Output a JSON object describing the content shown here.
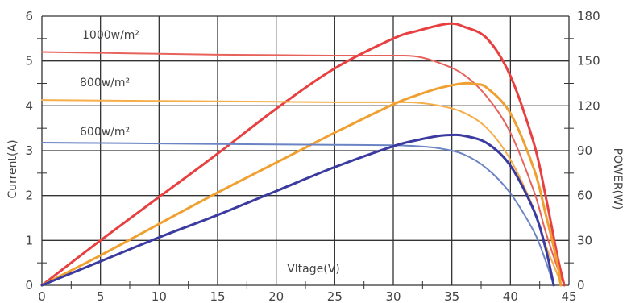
{
  "chart_data": {
    "type": "line",
    "xlabel": "Vltage(V)",
    "ylabel_left": "Current(A)",
    "ylabel_right": "POWER(W)",
    "xlim": [
      0,
      45
    ],
    "ylim_left": [
      0,
      6
    ],
    "ylim_right": [
      0,
      180
    ],
    "x_ticks": [
      "0",
      "5",
      "10",
      "15",
      "20",
      "25",
      "30",
      "35",
      "40",
      "45"
    ],
    "y_left_ticks": [
      "0",
      "1",
      "2",
      "3",
      "4",
      "5",
      "6"
    ],
    "y_right_ticks": [
      "0",
      "30",
      "60",
      "90",
      "120",
      "150",
      "180"
    ],
    "grid": true,
    "annotations": [
      {
        "text": "1000w/m²",
        "series": "iv_1000"
      },
      {
        "text": "800w/m²",
        "series": "iv_800"
      },
      {
        "text": "600w/m²",
        "series": "iv_600"
      }
    ],
    "colors": {
      "iv_1000": "#e8625c",
      "pv_1000": "#e84040",
      "iv_800": "#f5ae4a",
      "pv_800": "#f0a030",
      "iv_600": "#6b84c4",
      "pv_600": "#3a3aa0",
      "grid": "#333333"
    },
    "series": [
      {
        "id": "iv_1000",
        "axis": "left",
        "x": [
          0,
          5,
          10,
          15,
          20,
          25,
          30,
          32,
          34,
          36,
          38,
          40,
          42,
          43,
          44,
          44.6
        ],
        "y": [
          5.2,
          5.18,
          5.16,
          5.14,
          5.13,
          5.12,
          5.12,
          5.1,
          4.95,
          4.7,
          4.2,
          3.4,
          2.1,
          1.2,
          0.4,
          0
        ]
      },
      {
        "id": "pv_1000",
        "axis": "right",
        "x": [
          0,
          5,
          10,
          15,
          20,
          25,
          30,
          32,
          34,
          35,
          36,
          38,
          40,
          42,
          43,
          44,
          44.6
        ],
        "y": [
          0,
          30,
          59,
          88,
          118,
          145,
          165,
          170,
          174,
          175,
          173,
          165,
          140,
          95,
          60,
          20,
          0
        ]
      },
      {
        "id": "iv_800",
        "axis": "left",
        "x": [
          0,
          5,
          10,
          15,
          20,
          25,
          30,
          32,
          34,
          36,
          38,
          40,
          42,
          43,
          44,
          44.3
        ],
        "y": [
          4.13,
          4.12,
          4.11,
          4.1,
          4.09,
          4.08,
          4.08,
          4.07,
          4.0,
          3.85,
          3.5,
          2.8,
          1.7,
          0.9,
          0.25,
          0
        ]
      },
      {
        "id": "pv_800",
        "axis": "right",
        "x": [
          0,
          5,
          10,
          15,
          20,
          25,
          30,
          32,
          34,
          36,
          37,
          38,
          40,
          42,
          43,
          44,
          44.3
        ],
        "y": [
          0,
          20,
          41,
          62,
          82,
          102,
          121,
          127,
          132,
          135,
          134.5,
          132,
          115,
          78,
          48,
          15,
          0
        ]
      },
      {
        "id": "iv_600",
        "axis": "left",
        "x": [
          0,
          5,
          10,
          15,
          20,
          25,
          30,
          32,
          34,
          36,
          38,
          40,
          42,
          43,
          43.7
        ],
        "y": [
          3.18,
          3.17,
          3.16,
          3.15,
          3.14,
          3.13,
          3.12,
          3.1,
          3.05,
          2.92,
          2.6,
          2.05,
          1.2,
          0.55,
          0
        ]
      },
      {
        "id": "pv_600",
        "axis": "right",
        "x": [
          0,
          5,
          10,
          15,
          20,
          25,
          30,
          32,
          34,
          35,
          36,
          38,
          40,
          42,
          43,
          43.7
        ],
        "y": [
          0,
          16,
          32,
          47,
          63,
          79,
          93,
          97,
          100,
          100.5,
          100,
          95,
          80,
          50,
          25,
          0
        ]
      }
    ]
  }
}
